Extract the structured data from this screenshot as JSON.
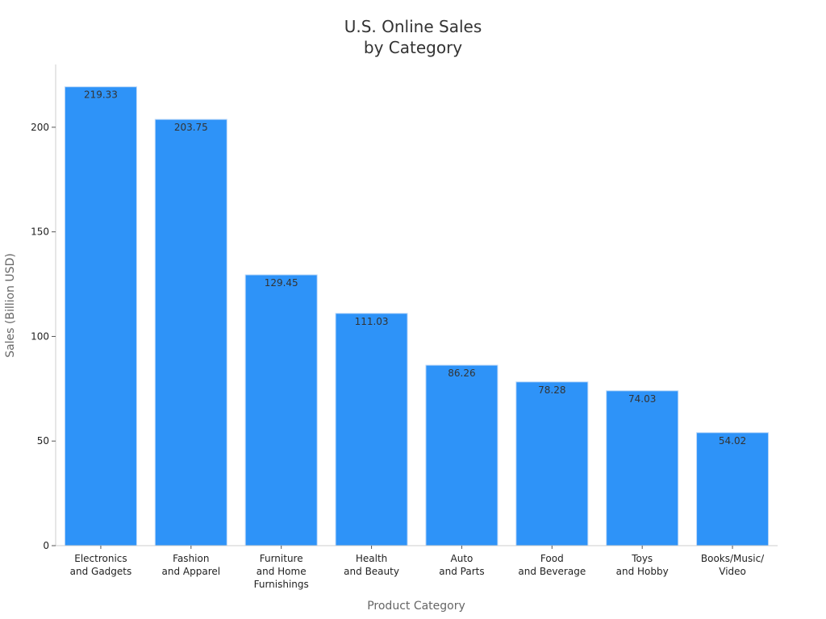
{
  "chart_data": {
    "type": "bar",
    "title": [
      "U.S. Online Sales",
      "by Category"
    ],
    "xlabel": "Product Category",
    "ylabel": "Sales (Billion USD)",
    "ylim": [
      0,
      230
    ],
    "yticks": [
      0,
      50,
      100,
      150,
      200
    ],
    "grid": false,
    "categories": [
      [
        "Electronics",
        "and Gadgets"
      ],
      [
        "Fashion",
        "and Apparel"
      ],
      [
        "Furniture",
        "and Home",
        "Furnishings"
      ],
      [
        "Health",
        "and Beauty"
      ],
      [
        "Auto",
        "and Parts"
      ],
      [
        "Food",
        "and Beverage"
      ],
      [
        "Toys",
        "and Hobby"
      ],
      [
        "Books/Music/",
        "Video"
      ]
    ],
    "values": [
      219.33,
      203.75,
      129.45,
      111.03,
      86.26,
      78.28,
      74.03,
      54.02
    ],
    "data_labels": [
      "219.33",
      "203.75",
      "129.45",
      "111.03",
      "86.26",
      "78.28",
      "74.03",
      "54.02"
    ],
    "bar_color": "#2e93f8",
    "bar_edge_color": "#bcd8f7"
  }
}
